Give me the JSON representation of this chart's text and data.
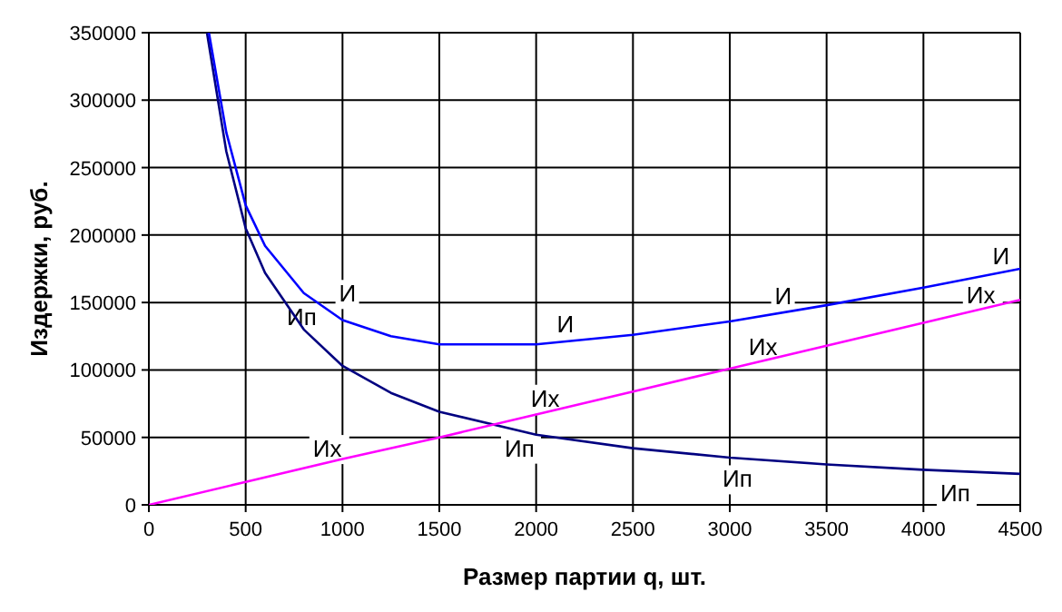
{
  "chart_data": {
    "type": "line",
    "xlabel": "Размер партии q, шт.",
    "ylabel": "Издержки, руб.",
    "xlim": [
      0,
      4500
    ],
    "xticks": [
      0,
      500,
      1000,
      1500,
      2000,
      2500,
      3000,
      3500,
      4000,
      4500
    ],
    "ylim": [
      0,
      350000
    ],
    "yticks": [
      0,
      50000,
      100000,
      150000,
      200000,
      250000,
      300000,
      350000
    ],
    "grid": true,
    "marker": "none",
    "line_style": "solid",
    "series": [
      {
        "name": "Ип",
        "color": "#000080",
        "x": [
          300,
          400,
          500,
          600,
          800,
          1000,
          1250,
          1500,
          2000,
          2500,
          3000,
          3500,
          4000,
          4500
        ],
        "values": [
          350000,
          262000,
          205000,
          172000,
          130000,
          103000,
          83000,
          69000,
          52000,
          42000,
          35000,
          30000,
          26000,
          23000
        ]
      },
      {
        "name": "Их",
        "color": "#ff00ff",
        "x": [
          0,
          500,
          1000,
          1500,
          2000,
          2500,
          3000,
          3500,
          4000,
          4500
        ],
        "values": [
          0,
          17000,
          34000,
          50000,
          67000,
          84000,
          101000,
          118000,
          135000,
          152000
        ]
      },
      {
        "name": "И",
        "color": "#0000ff",
        "x": [
          310,
          400,
          500,
          600,
          800,
          1000,
          1250,
          1500,
          1750,
          2000,
          2500,
          3000,
          3500,
          4000,
          4500
        ],
        "values": [
          350000,
          276000,
          222000,
          192000,
          157000,
          137000,
          125000,
          119000,
          119000,
          119000,
          126000,
          136000,
          148000,
          161000,
          175000
        ]
      }
    ]
  }
}
